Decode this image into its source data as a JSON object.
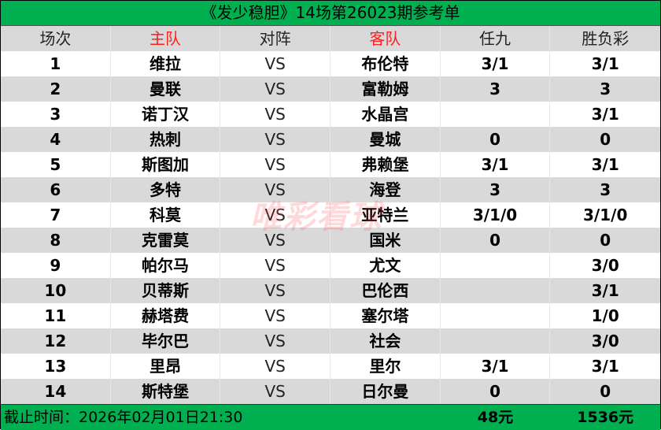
{
  "title": "《发少稳胆》14场第26023期参考单",
  "headers": [
    "场次",
    "主队",
    "对阵",
    "客队",
    "任九",
    "胜负彩"
  ],
  "rows": [
    [
      "1",
      "维拉",
      "VS",
      "布伦特",
      "3/1",
      "3/1"
    ],
    [
      "2",
      "曼联",
      "VS",
      "富勒姆",
      "3",
      "3"
    ],
    [
      "3",
      "诺丁汉",
      "VS",
      "水晶宫",
      "",
      "3/1"
    ],
    [
      "4",
      "热刺",
      "VS",
      "曼城",
      "0",
      "0"
    ],
    [
      "5",
      "斯图加",
      "VS",
      "弗赖堡",
      "3/1",
      "3/1"
    ],
    [
      "6",
      "多特",
      "VS",
      "海登",
      "3",
      "3"
    ],
    [
      "7",
      "科莫",
      "VS",
      "亚特兰",
      "3/1/0",
      "3/1/0"
    ],
    [
      "8",
      "克雷莫",
      "VS",
      "国米",
      "0",
      "0"
    ],
    [
      "9",
      "帕尔马",
      "VS",
      "尤文",
      "",
      "3/0"
    ],
    [
      "10",
      "贝蒂斯",
      "VS",
      "巴伦西",
      "",
      "3/1"
    ],
    [
      "11",
      "赫塔费",
      "VS",
      "塞尔塔",
      "",
      "1/0"
    ],
    [
      "12",
      "毕尔巴",
      "VS",
      "社会",
      "",
      "3/0"
    ],
    [
      "13",
      "里昂",
      "VS",
      "里尔",
      "3/1",
      "3/1"
    ],
    [
      "14",
      "斯特堡",
      "VS",
      "日尔曼",
      "0",
      "0"
    ]
  ],
  "footer": {
    "deadline": "截止时间：2026年02月01日21:30",
    "ren9_cost": "48元",
    "sfc_cost": "1536元"
  },
  "watermark": "唯彩看球",
  "colors": {
    "green": "#00b050",
    "gray_row": "#d9d9d9",
    "red_header": "#ff2020"
  }
}
